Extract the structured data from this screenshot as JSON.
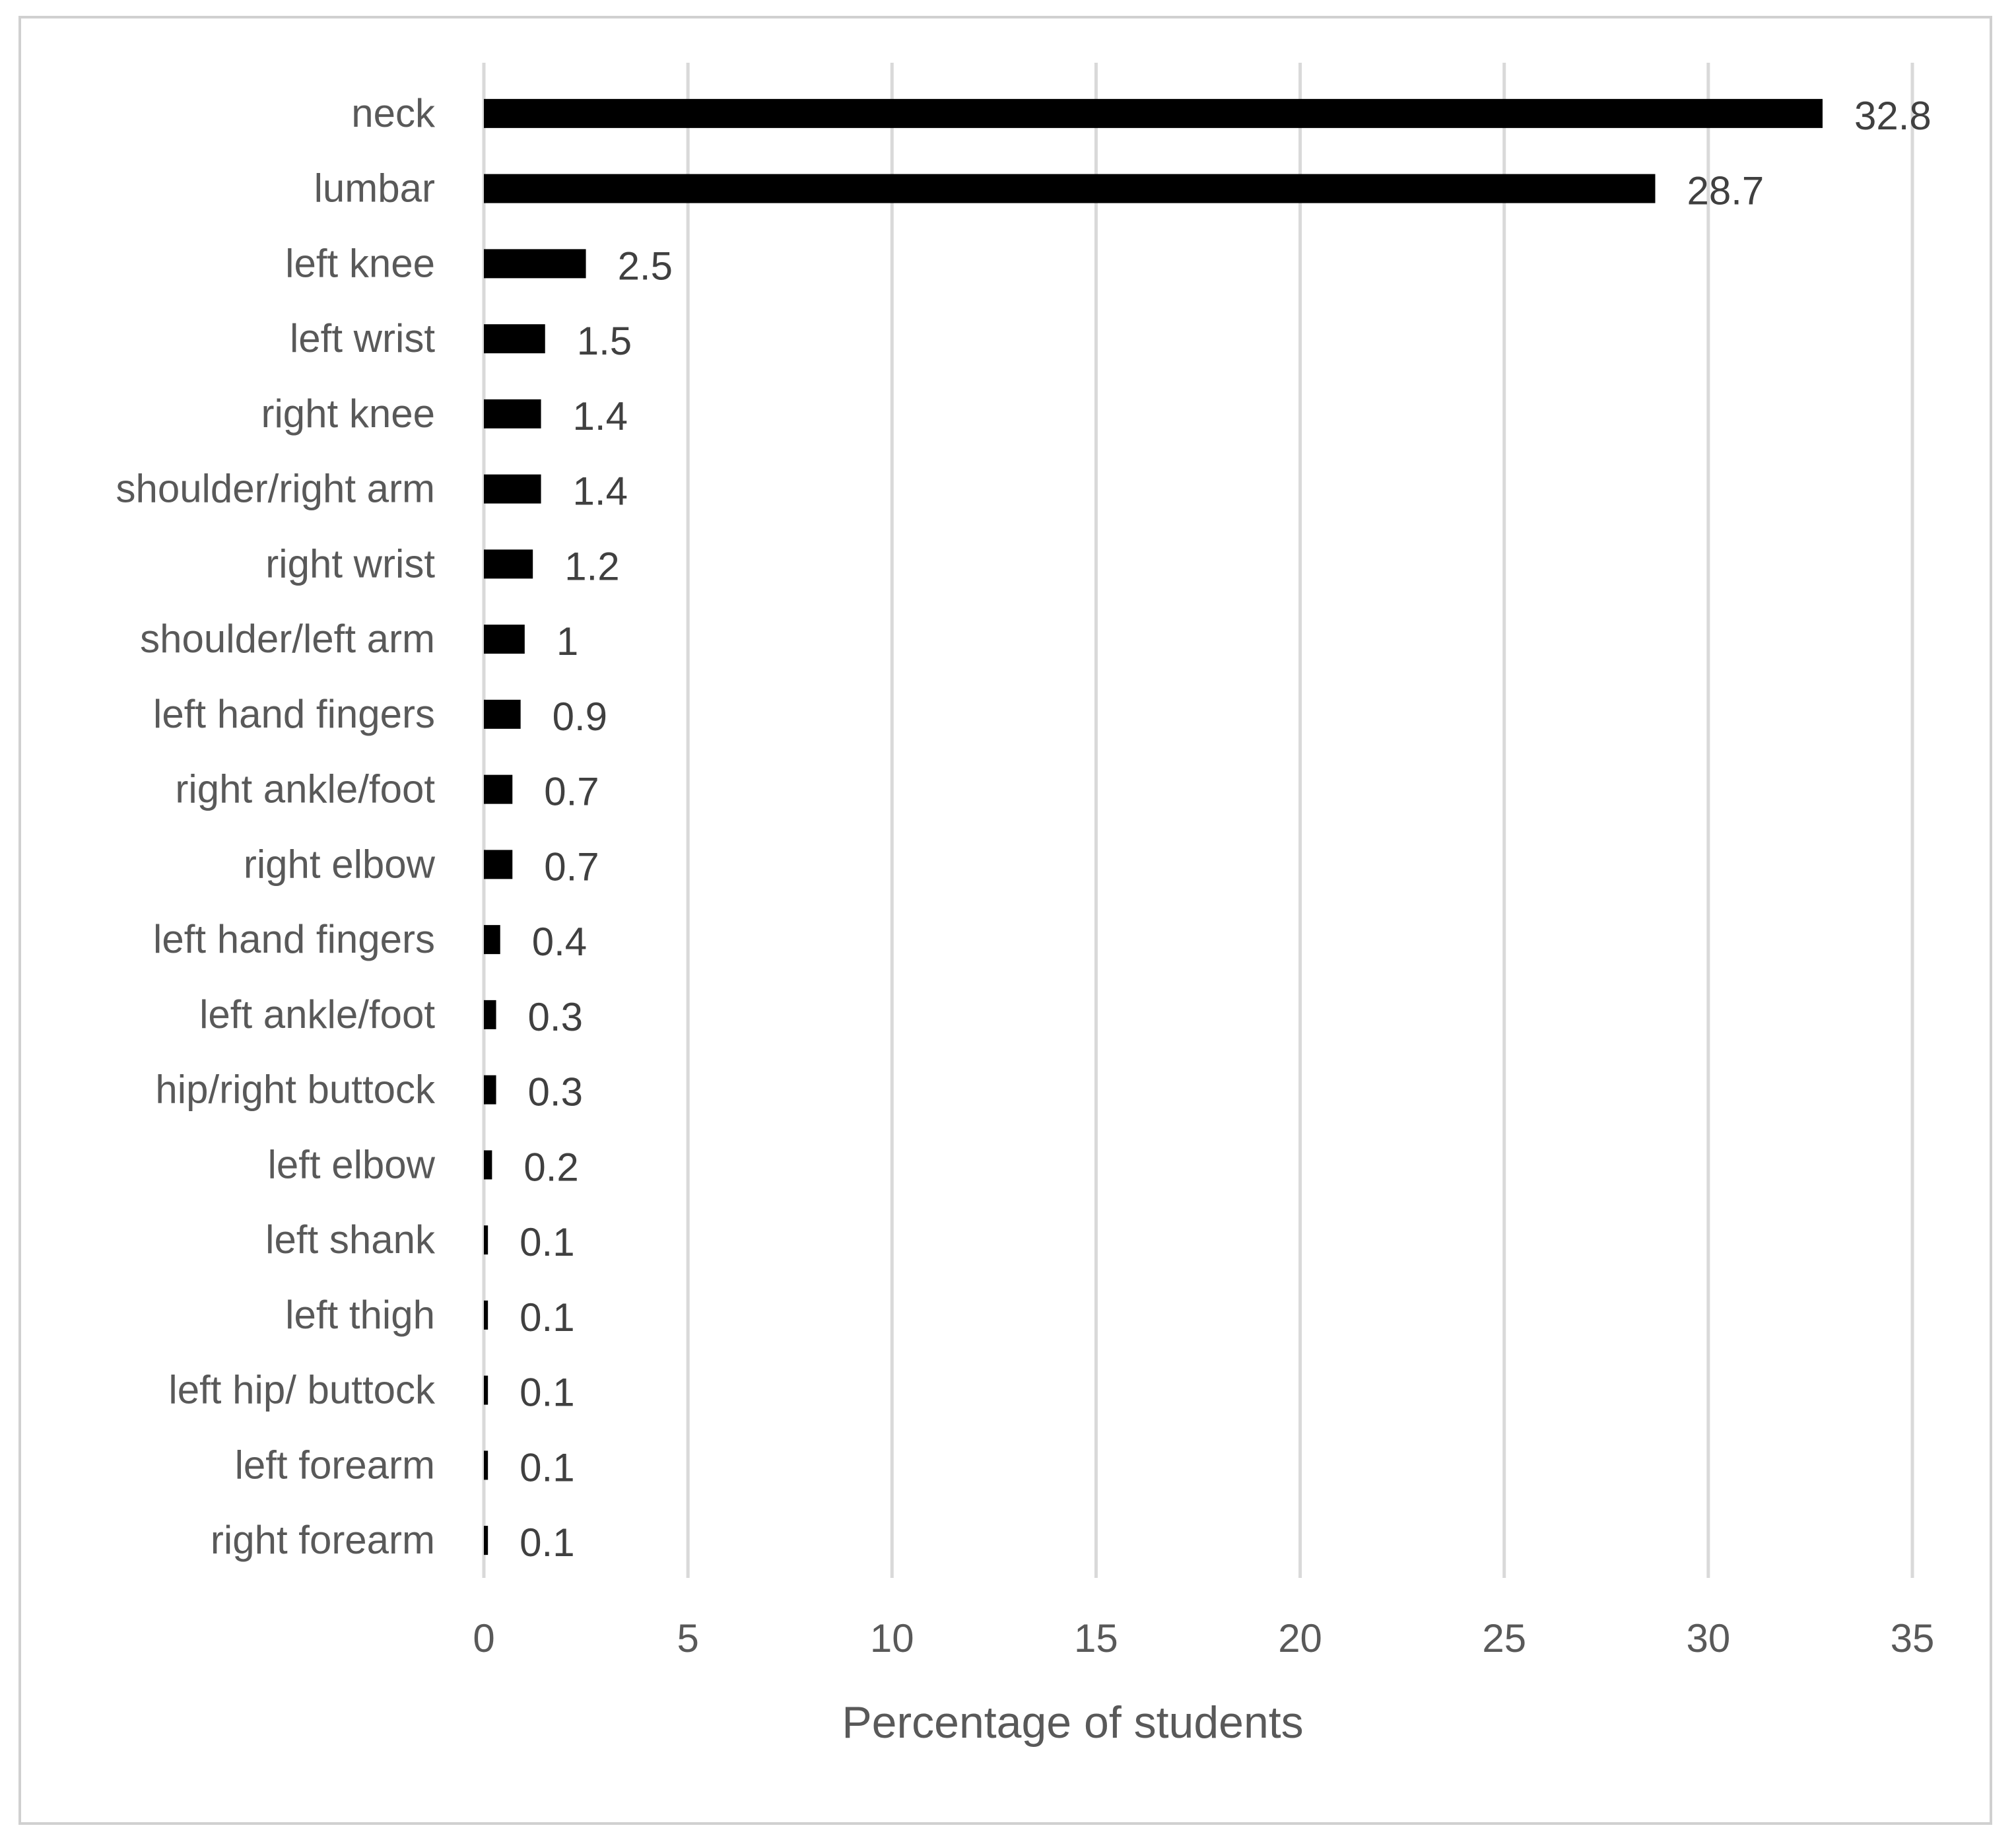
{
  "chart_data": {
    "type": "bar",
    "orientation": "horizontal",
    "title": "",
    "xlabel": "Percentage of students",
    "ylabel": "",
    "xlim": [
      0,
      35
    ],
    "x_ticks": [
      0,
      5,
      10,
      15,
      20,
      25,
      30,
      35
    ],
    "grid": "vertical gridlines",
    "legend": "none",
    "bar_color": "#000000",
    "gridline_color": "#d9d9d9",
    "categories": [
      "neck",
      "lumbar",
      "left knee",
      "left wrist",
      "right knee",
      "shoulder/right arm",
      "right wrist",
      "shoulder/left arm",
      "left hand fingers",
      "right ankle/foot",
      "right elbow",
      "left hand fingers",
      "left ankle/foot",
      "hip/right buttock",
      "left elbow",
      "left shank",
      "left thigh",
      "left hip/ buttock",
      "left forearm",
      "right forearm"
    ],
    "values": [
      32.8,
      28.7,
      2.5,
      1.5,
      1.4,
      1.4,
      1.2,
      1,
      0.9,
      0.7,
      0.7,
      0.4,
      0.3,
      0.3,
      0.2,
      0.1,
      0.1,
      0.1,
      0.1,
      0.1
    ],
    "data_labels": [
      "32.8",
      "28.7",
      "2.5",
      "1.5",
      "1.4",
      "1.4",
      "1.2",
      "1",
      "0.9",
      "0.7",
      "0.7",
      "0.4",
      "0.3",
      "0.3",
      "0.2",
      "0.1",
      "0.1",
      "0.1",
      "0.1",
      "0.1"
    ]
  }
}
